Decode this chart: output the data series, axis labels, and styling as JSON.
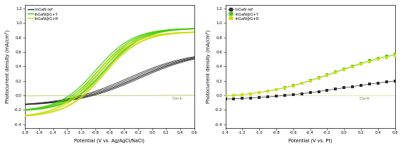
{
  "left": {
    "xlabel": "Potential (V vs. Ag/AgCl/NaCl)",
    "ylabel": "Photocurrent density (mA/cm²)",
    "xlim": [
      -1.8,
      0.6
    ],
    "ylim": [
      -0.45,
      1.25
    ],
    "xticks": [
      -1.8,
      -1.6,
      -1.4,
      -1.2,
      -1.0,
      -0.8,
      -0.6,
      -0.4,
      -0.2,
      0.0,
      0.2,
      0.4,
      0.6
    ],
    "yticks": [
      -0.4,
      -0.2,
      0.0,
      0.2,
      0.4,
      0.6,
      0.8,
      1.0,
      1.2
    ],
    "dark_label": "Dark",
    "legend": [
      "InGaN ref",
      "InGaN@G+Y",
      "InGaN@G+R"
    ],
    "colors_ref": "#2a2a2a",
    "colors_gy": "#44cc00",
    "colors_gr": "#ccdd00",
    "dark_color": "#dddd88"
  },
  "right": {
    "xlabel": "Potential (V vs. Pt)",
    "ylabel": "Photocurrent density (mA/cm²)",
    "xlim": [
      -1.4,
      0.6
    ],
    "ylim": [
      -0.45,
      1.25
    ],
    "xticks": [
      -1.4,
      -1.2,
      -1.0,
      -0.8,
      -0.6,
      -0.4,
      -0.2,
      0.0,
      0.2,
      0.4,
      0.6
    ],
    "yticks": [
      -0.4,
      -0.2,
      0.0,
      0.2,
      0.4,
      0.6,
      0.8,
      1.0,
      1.2
    ],
    "dark_label": "Dark",
    "legend": [
      "InGaN ref",
      "InGaN@G+Y",
      "InGaN@G+R"
    ],
    "colors_ref": "#2a2a2a",
    "colors_gy": "#44cc00",
    "colors_gr": "#ccdd00",
    "dark_color": "#dddd88"
  }
}
